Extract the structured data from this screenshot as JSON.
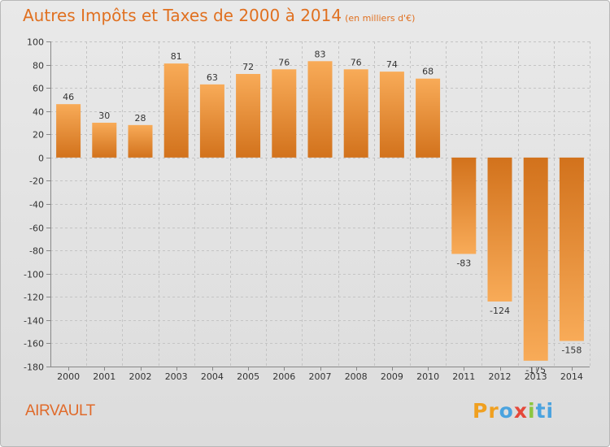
{
  "chart_data": {
    "type": "bar",
    "title": "Autres Impôts et Taxes de 2000 à 2014",
    "subtitle": "(en milliers d'€)",
    "categories": [
      "2000",
      "2001",
      "2002",
      "2003",
      "2004",
      "2005",
      "2006",
      "2007",
      "2008",
      "2009",
      "2010",
      "2011",
      "2012",
      "2013",
      "2014"
    ],
    "values": [
      46,
      30,
      28,
      81,
      63,
      72,
      76,
      83,
      76,
      74,
      68,
      -83,
      -124,
      -175,
      -158
    ],
    "value_labels": [
      "46",
      "30",
      "28",
      "81",
      "63",
      "72",
      "76",
      "83",
      "76",
      "74",
      "68",
      "-83",
      "-124",
      "-175",
      "-158"
    ],
    "ylim": [
      -180,
      100
    ],
    "yticks": [
      100,
      80,
      60,
      40,
      20,
      0,
      -20,
      -40,
      -60,
      -80,
      -100,
      -120,
      -140,
      -160,
      -180
    ],
    "ytick_labels": [
      "100",
      "80",
      "60",
      "40",
      "20",
      "0",
      "-20",
      "-40",
      "-60",
      "-80",
      "-100",
      "-120",
      "-140",
      "-160",
      "-180"
    ],
    "grid": true,
    "colors": {
      "bar_light": "#f8ab58",
      "bar_dark": "#d2721c",
      "title": "#e07020"
    }
  },
  "footer": {
    "commune": "AIRVAULT",
    "brand": [
      "Pr",
      "o",
      "x",
      "i",
      "ti"
    ]
  }
}
